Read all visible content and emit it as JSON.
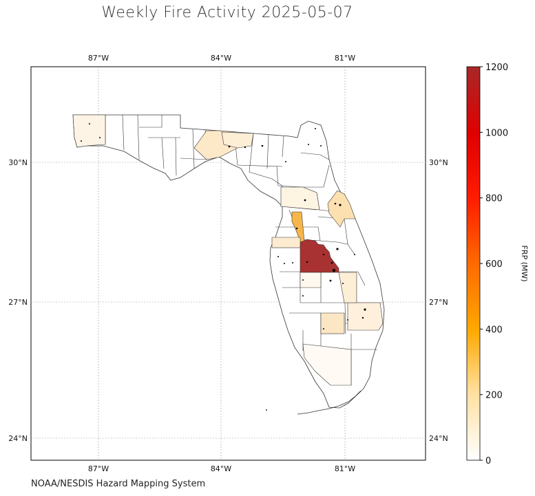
{
  "title": "Weekly Fire Activity 2025-05-07",
  "credit": "NOAA/NESDIS Hazard Mapping System",
  "map": {
    "lon_ticks": [
      "87°W",
      "84°W",
      "81°W"
    ],
    "lat_ticks": [
      "30°N",
      "27°N",
      "24°N"
    ],
    "lon_values": [
      -87,
      -84,
      -81
    ],
    "lat_values": [
      30,
      27,
      24
    ]
  },
  "colorbar": {
    "label": "FRP (MW)",
    "min": 0,
    "max": 1200,
    "ticks": [
      "0",
      "200",
      "400",
      "600",
      "800",
      "1000",
      "1200"
    ],
    "colors": [
      "#ffffff",
      "#ffe0a0",
      "#ffa800",
      "#ff6a00",
      "#ff1a00",
      "#e00000",
      "#a82828"
    ]
  },
  "chart_data": {
    "type": "choropleth",
    "title": "Weekly Fire Activity 2025-05-07",
    "colorbar_label": "FRP (MW)",
    "value_range": [
      0,
      1200
    ],
    "highlighted_counties": [
      {
        "approx_lon": -81.7,
        "approx_lat": 27.9,
        "frp": 1200
      },
      {
        "approx_lon": -82.3,
        "approx_lat": 28.8,
        "frp": 350
      },
      {
        "approx_lon": -81.3,
        "approx_lat": 29.5,
        "frp": 180
      },
      {
        "approx_lon": -81.5,
        "approx_lat": 26.8,
        "frp": 100
      },
      {
        "approx_lon": -80.7,
        "approx_lat": 26.8,
        "frp": 60
      },
      {
        "approx_lon": -83.5,
        "approx_lat": 30.5,
        "frp": 80
      }
    ]
  }
}
